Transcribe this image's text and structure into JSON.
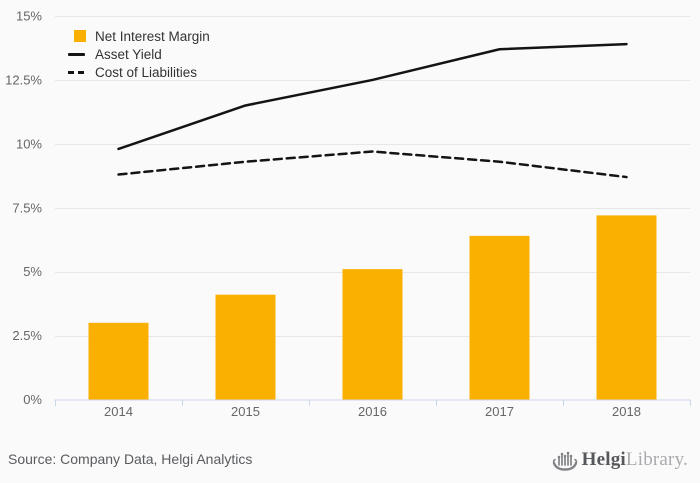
{
  "legend": {
    "items": [
      {
        "label": "Net Interest Margin",
        "glyph": "square"
      },
      {
        "label": "Asset Yield",
        "glyph": "line"
      },
      {
        "label": "Cost of Liabilities",
        "glyph": "dash"
      }
    ]
  },
  "footer": {
    "source": "Source: Company Data, Helgi Analytics",
    "logo": {
      "brand_bold": "Helgi",
      "brand_light": "Library."
    }
  },
  "colors": {
    "bar": "#f9b000",
    "line": "#141414",
    "grid": "#e7e7e7",
    "axis": "#ccd6eb",
    "axis_label": "#666666",
    "background": "#fafafa",
    "legend_text": "#333333",
    "source_text": "#595b5e",
    "logo_dark": "#57585b",
    "logo_light": "#a8aaad"
  },
  "chart_data": {
    "type": "bar",
    "title": "",
    "categories": [
      "2014",
      "2015",
      "2016",
      "2017",
      "2018"
    ],
    "series": [
      {
        "name": "Net Interest Margin",
        "type": "bar",
        "dash": "solid",
        "color": "#f9b000",
        "values": [
          3.0,
          4.1,
          5.1,
          6.4,
          7.2
        ]
      },
      {
        "name": "Asset Yield",
        "type": "line",
        "dash": "solid",
        "color": "#141414",
        "values": [
          9.8,
          11.5,
          12.5,
          13.7,
          13.9
        ]
      },
      {
        "name": "Cost of Liabilities",
        "type": "line",
        "dash": "dashed",
        "color": "#141414",
        "values": [
          8.8,
          9.3,
          9.7,
          9.3,
          8.7
        ]
      }
    ],
    "xlabel": "",
    "ylabel": "",
    "ylim": [
      0,
      15
    ],
    "yticks": [
      {
        "v": 0,
        "label": "0%"
      },
      {
        "v": 2.5,
        "label": "2.5%"
      },
      {
        "v": 5,
        "label": "5%"
      },
      {
        "v": 7.5,
        "label": "7.5%"
      },
      {
        "v": 10,
        "label": "10%"
      },
      {
        "v": 12.5,
        "label": "12.5%"
      },
      {
        "v": 15,
        "label": "15%"
      }
    ],
    "grid": true,
    "legend_position": "top-left"
  }
}
